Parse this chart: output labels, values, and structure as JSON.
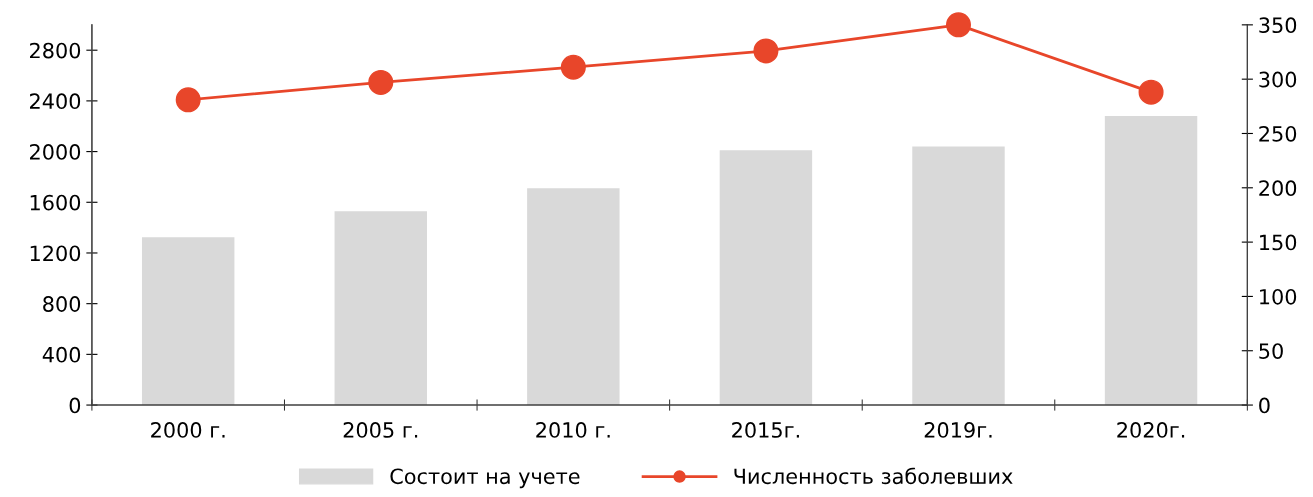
{
  "chart_data": {
    "type": "bar",
    "categories": [
      "2000 г.",
      "2005 г.",
      "2010 г.",
      "2015г.",
      "2019г.",
      "2020г."
    ],
    "series": [
      {
        "name": "Состоит на учете",
        "color": "#d9d9d9",
        "values": [
          1325,
          1530,
          1710,
          2010,
          2040,
          2280
        ]
      },
      {
        "name": "Численность заболевших",
        "type": "line",
        "axis": "y2",
        "color": "#e8462a",
        "marker": "circle",
        "values": [
          281,
          297,
          311,
          326,
          350,
          288
        ]
      }
    ],
    "ylim": [
      0,
      3000
    ],
    "yticks": [
      0,
      400,
      800,
      1200,
      1600,
      2000,
      2400,
      2800
    ],
    "y2lim": [
      0,
      350
    ],
    "y2ticks": [
      0,
      50,
      100,
      150,
      200,
      250,
      300,
      350
    ],
    "grid": false,
    "legend": "bottom"
  }
}
